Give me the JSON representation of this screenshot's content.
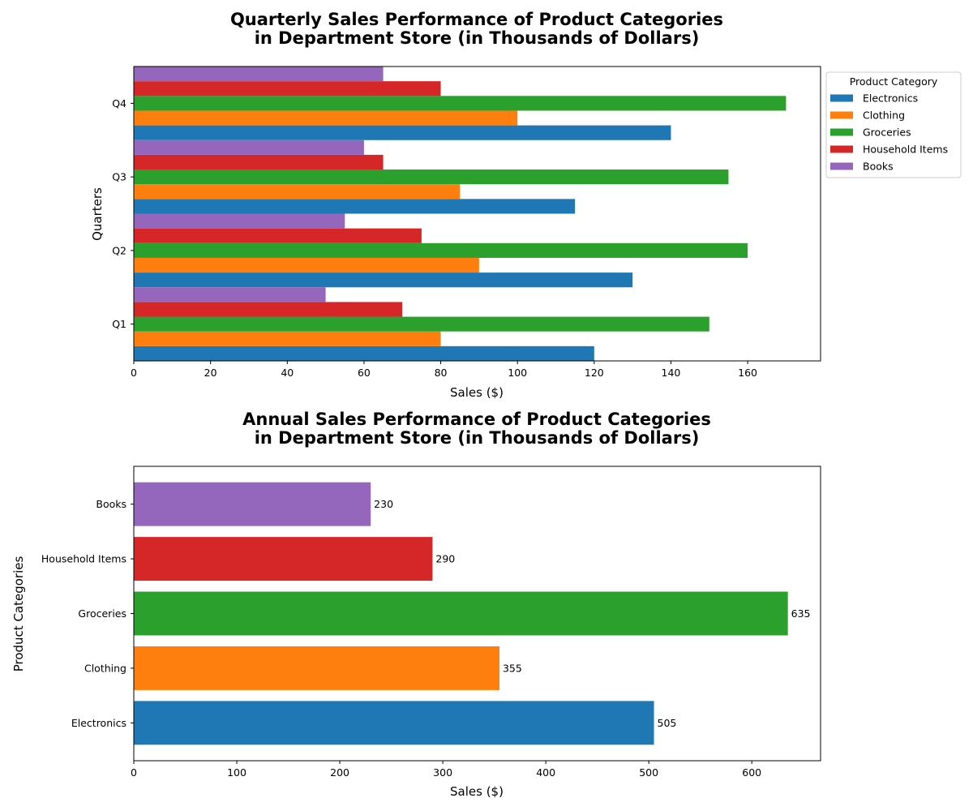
{
  "chart_data": [
    {
      "type": "bar",
      "orientation": "horizontal",
      "title_line1": "Quarterly Sales Performance of Product Categories",
      "title_line2": "in Department Store (in Thousands of Dollars)",
      "xlabel": "Sales ($)",
      "ylabel": "Quarters",
      "categories": [
        "Q1",
        "Q2",
        "Q3",
        "Q4"
      ],
      "xlim": [
        0,
        179
      ],
      "xticks": [
        0,
        20,
        40,
        60,
        80,
        100,
        120,
        140,
        160
      ],
      "legend": {
        "title": "Product Category",
        "placement": "outside-top-right"
      },
      "grid": false,
      "series": [
        {
          "name": "Electronics",
          "color": "#1f77b4",
          "values": [
            120,
            130,
            115,
            140
          ]
        },
        {
          "name": "Clothing",
          "color": "#ff7f0e",
          "values": [
            80,
            90,
            85,
            100
          ]
        },
        {
          "name": "Groceries",
          "color": "#2ca02c",
          "values": [
            150,
            160,
            155,
            170
          ]
        },
        {
          "name": "Household Items",
          "color": "#d62728",
          "values": [
            70,
            75,
            65,
            80
          ]
        },
        {
          "name": "Books",
          "color": "#9467bd",
          "values": [
            50,
            55,
            60,
            65
          ]
        }
      ]
    },
    {
      "type": "bar",
      "orientation": "horizontal",
      "title_line1": "Annual Sales Performance of Product Categories",
      "title_line2": "in Department Store (in Thousands of Dollars)",
      "xlabel": "Sales ($)",
      "ylabel": "Product Categories",
      "categories": [
        "Electronics",
        "Clothing",
        "Groceries",
        "Household Items",
        "Books"
      ],
      "values": [
        505,
        355,
        635,
        290,
        230
      ],
      "colors": [
        "#1f77b4",
        "#ff7f0e",
        "#2ca02c",
        "#d62728",
        "#9467bd"
      ],
      "xlim": [
        0,
        666.75
      ],
      "xticks": [
        0,
        100,
        200,
        300,
        400,
        500,
        600
      ],
      "grid": false
    }
  ]
}
